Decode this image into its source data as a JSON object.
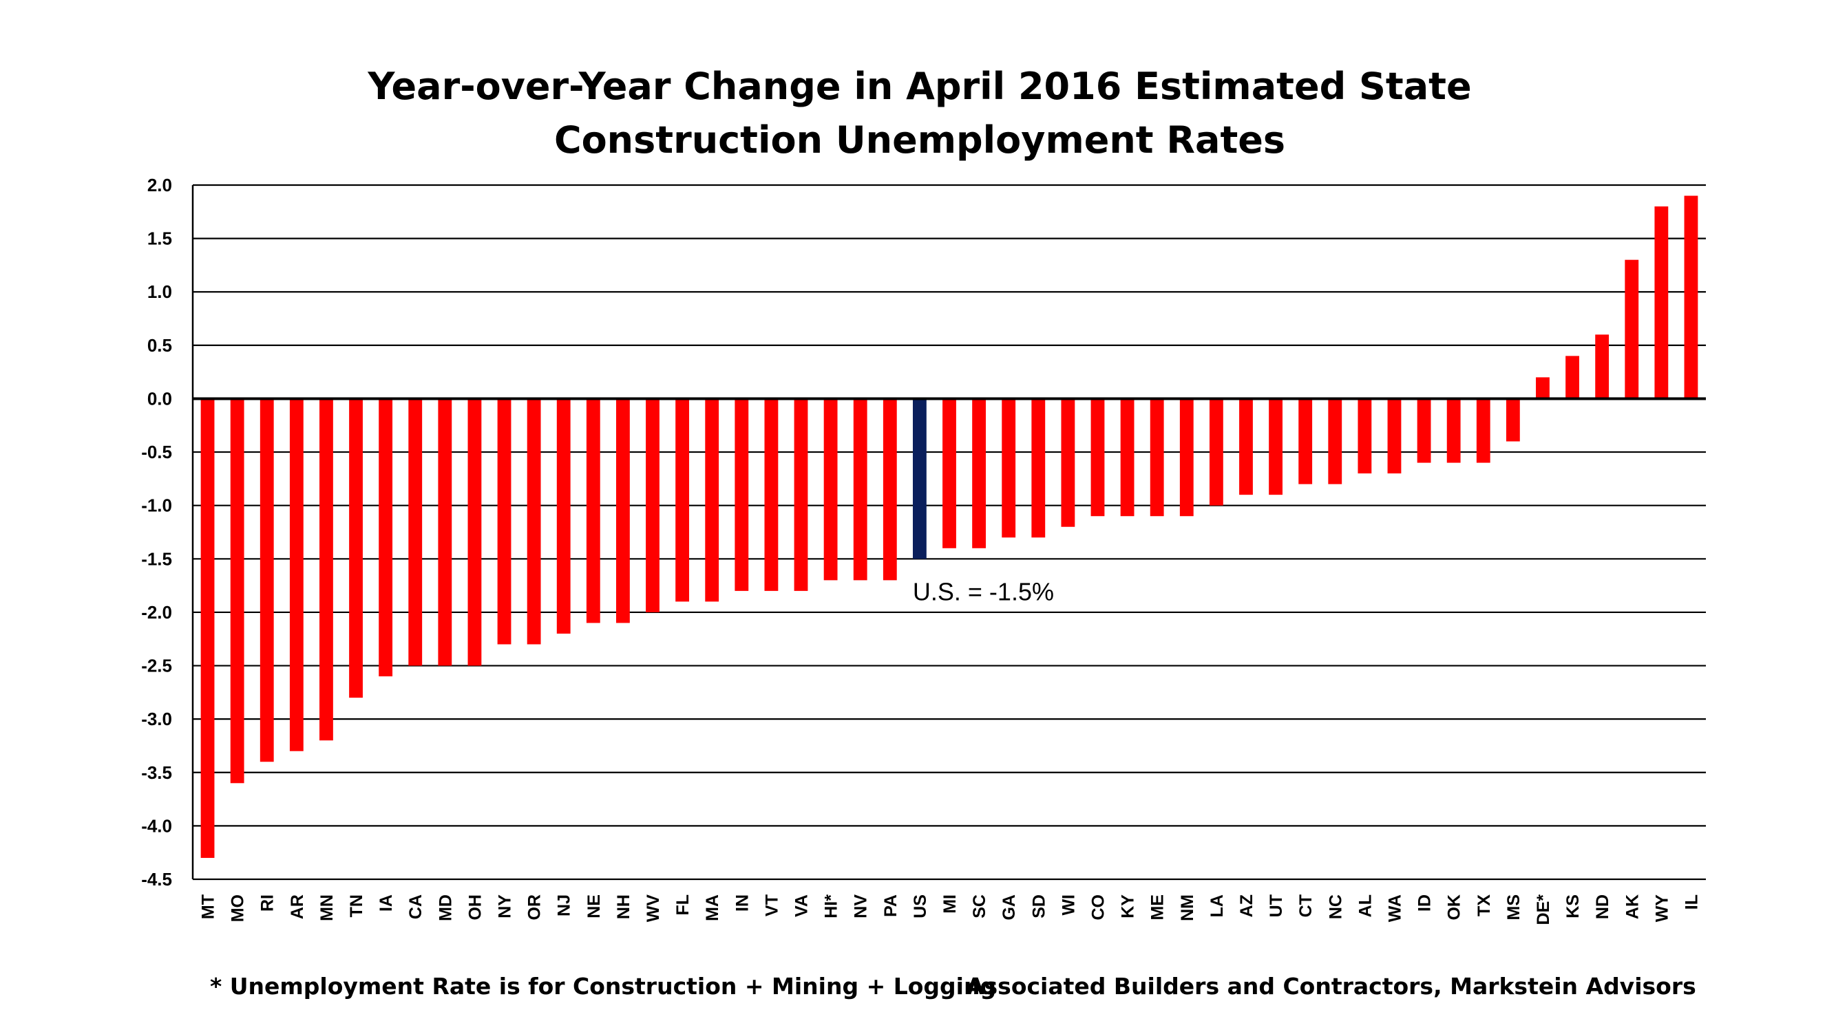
{
  "chart_data": {
    "type": "bar",
    "title": [
      "Year-over-Year Change in April 2016 Estimated State",
      "Construction Unemployment Rates"
    ],
    "categories": [
      "MT",
      "MO",
      "RI",
      "AR",
      "MN",
      "TN",
      "IA",
      "CA",
      "MD",
      "OH",
      "NY",
      "OR",
      "NJ",
      "NE",
      "NH",
      "WV",
      "FL",
      "MA",
      "IN",
      "VT",
      "VA",
      "HI*",
      "NV",
      "PA",
      "US",
      "MI",
      "SC",
      "GA",
      "SD",
      "WI",
      "CO",
      "KY",
      "ME",
      "NM",
      "LA",
      "AZ",
      "UT",
      "CT",
      "NC",
      "AL",
      "WA",
      "ID",
      "OK",
      "TX",
      "MS",
      "DE*",
      "KS",
      "ND",
      "AK",
      "WY",
      "IL"
    ],
    "values": [
      -4.3,
      -3.6,
      -3.4,
      -3.3,
      -3.2,
      -2.8,
      -2.6,
      -2.5,
      -2.5,
      -2.5,
      -2.3,
      -2.3,
      -2.2,
      -2.1,
      -2.1,
      -2.0,
      -1.9,
      -1.9,
      -1.8,
      -1.8,
      -1.8,
      -1.7,
      -1.7,
      -1.7,
      -1.5,
      -1.4,
      -1.4,
      -1.3,
      -1.3,
      -1.2,
      -1.1,
      -1.1,
      -1.1,
      -1.1,
      -1.0,
      -0.9,
      -0.9,
      -0.8,
      -0.8,
      -0.7,
      -0.7,
      -0.6,
      -0.6,
      -0.6,
      -0.4,
      0.2,
      0.4,
      0.6,
      1.3,
      1.8,
      1.9
    ],
    "ylim": [
      -4.5,
      2.0
    ],
    "yticks": [
      "2.0",
      "1.5",
      "1.0",
      "0.5",
      "0.0",
      "-0.5",
      "-1.0",
      "-1.5",
      "-2.0",
      "-2.5",
      "-3.0",
      "-3.5",
      "-4.0",
      "-4.5"
    ],
    "ytick_values": [
      2.0,
      1.5,
      1.0,
      0.5,
      0.0,
      -0.5,
      -1.0,
      -1.5,
      -2.0,
      -2.5,
      -3.0,
      -3.5,
      -4.0,
      -4.5
    ],
    "grid": true,
    "highlight_category": "US",
    "colors": {
      "bar": "#ff0000",
      "highlight": "#0a1f5c",
      "grid": "#000000"
    },
    "annotation": "U.S. = -1.5%",
    "footnote_left": "* Unemployment Rate is for Construction + Mining + Logging",
    "footnote_right": "Associated Builders and Contractors, Markstein Advisors"
  }
}
